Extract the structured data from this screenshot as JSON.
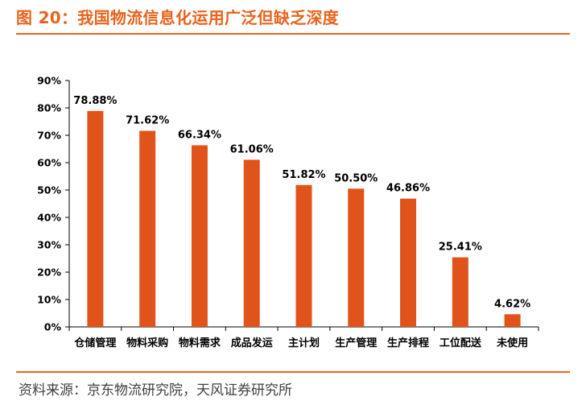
{
  "figure": {
    "title": "图 20：我国物流信息化运用广泛但缺乏深度",
    "source": "资料来源：京东物流研究院，天风证券研究所"
  },
  "colors": {
    "accent": "#e8631c",
    "bar": "#e0541b"
  },
  "chart_data": {
    "type": "bar",
    "categories": [
      "仓储管理",
      "物料采购",
      "物料需求",
      "成品发运",
      "主计划",
      "生产管理",
      "生产排程",
      "工位配送",
      "未使用"
    ],
    "values": [
      78.88,
      71.62,
      66.34,
      61.06,
      51.82,
      50.5,
      46.86,
      25.41,
      4.62
    ],
    "data_labels": [
      "78.88%",
      "71.62%",
      "66.34%",
      "61.06%",
      "51.82%",
      "50.50%",
      "46.86%",
      "25.41%",
      "4.62%"
    ],
    "y_ticks": [
      "0%",
      "10%",
      "20%",
      "30%",
      "40%",
      "50%",
      "60%",
      "70%",
      "80%",
      "90%"
    ],
    "ylim": [
      0,
      90
    ],
    "grid": false,
    "legend": "none"
  }
}
